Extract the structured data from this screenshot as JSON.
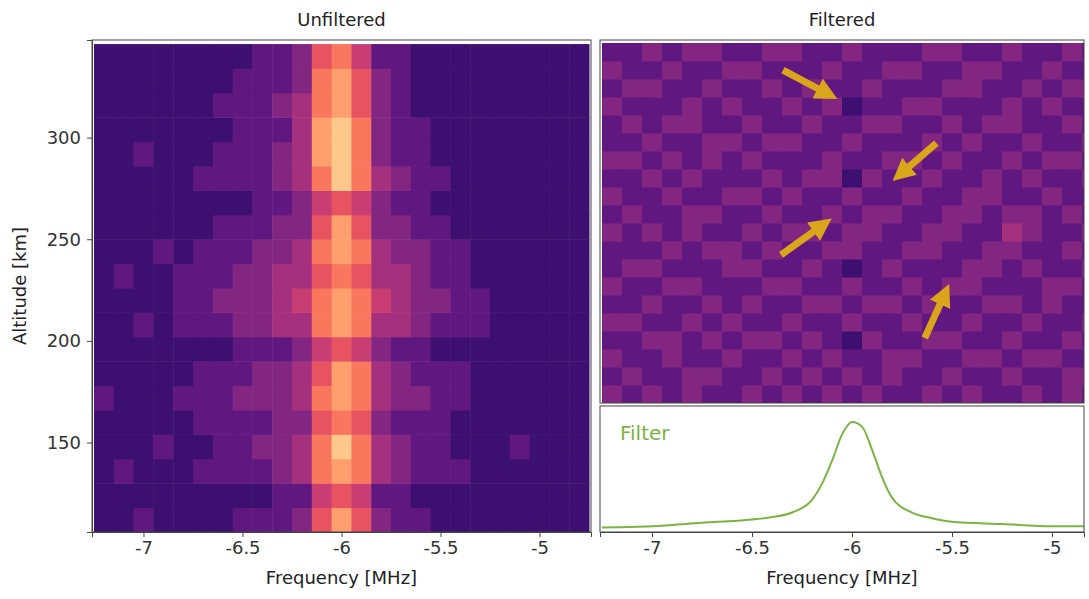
{
  "chart_data": [
    {
      "type": "heatmap",
      "title": "Unfiltered",
      "xlabel": "Frequency [MHz]",
      "ylabel": "Altitude [km]",
      "xlim": [
        -7.26,
        -4.74
      ],
      "ylim": [
        106,
        348
      ],
      "xticks": [
        -7,
        -6.5,
        -6,
        -5.5,
        -5
      ],
      "yticks": [
        150,
        200,
        250,
        300
      ],
      "zlim": [
        0,
        10
      ],
      "x": [
        -7.2,
        -7.1,
        -7.0,
        -6.9,
        -6.8,
        -6.7,
        -6.6,
        -6.5,
        -6.4,
        -6.3,
        -6.2,
        -6.1,
        -6.0,
        -5.9,
        -5.8,
        -5.7,
        -5.6,
        -5.5,
        -5.4,
        -5.3,
        -5.2,
        -5.1,
        -5.0,
        -4.9,
        -4.8
      ],
      "y": [
        112,
        124,
        136,
        148,
        160,
        172,
        184,
        196,
        208,
        220,
        232,
        244,
        256,
        268,
        280,
        292,
        304,
        316,
        328,
        340
      ],
      "values": [
        [
          1,
          1,
          2,
          1,
          1,
          1,
          1,
          2,
          2,
          2,
          3,
          6,
          8,
          6,
          3,
          2,
          2,
          1,
          1,
          1,
          1,
          1,
          1,
          1,
          1
        ],
        [
          1,
          1,
          1,
          1,
          1,
          1,
          1,
          1,
          1,
          2,
          2,
          5,
          6,
          5,
          2,
          2,
          1,
          1,
          1,
          1,
          1,
          1,
          1,
          1,
          1
        ],
        [
          1,
          2,
          1,
          1,
          1,
          2,
          2,
          2,
          2,
          3,
          4,
          7,
          8,
          7,
          4,
          3,
          2,
          2,
          2,
          1,
          1,
          1,
          1,
          1,
          1
        ],
        [
          1,
          1,
          1,
          2,
          1,
          1,
          2,
          2,
          3,
          3,
          4,
          7,
          9,
          7,
          4,
          3,
          2,
          2,
          1,
          1,
          1,
          2,
          1,
          1,
          1
        ],
        [
          1,
          1,
          1,
          1,
          1,
          2,
          2,
          2,
          2,
          3,
          3,
          6,
          7,
          6,
          3,
          2,
          2,
          2,
          1,
          1,
          1,
          1,
          1,
          1,
          1
        ],
        [
          2,
          1,
          1,
          1,
          2,
          2,
          2,
          3,
          3,
          3,
          4,
          7,
          8,
          7,
          4,
          3,
          3,
          2,
          2,
          1,
          1,
          1,
          1,
          1,
          1
        ],
        [
          1,
          1,
          1,
          1,
          1,
          2,
          2,
          2,
          3,
          3,
          4,
          6,
          8,
          7,
          4,
          3,
          2,
          2,
          2,
          1,
          1,
          1,
          1,
          1,
          1
        ],
        [
          1,
          1,
          1,
          1,
          1,
          1,
          1,
          2,
          2,
          2,
          3,
          5,
          6,
          5,
          3,
          2,
          2,
          1,
          1,
          1,
          1,
          1,
          1,
          1,
          1
        ],
        [
          1,
          1,
          2,
          1,
          2,
          2,
          2,
          3,
          3,
          4,
          4,
          7,
          8,
          7,
          4,
          4,
          3,
          2,
          2,
          2,
          1,
          1,
          1,
          1,
          1
        ],
        [
          1,
          1,
          1,
          1,
          2,
          2,
          3,
          3,
          3,
          4,
          5,
          7,
          8,
          7,
          5,
          4,
          3,
          3,
          2,
          2,
          1,
          1,
          1,
          1,
          1
        ],
        [
          1,
          2,
          1,
          1,
          2,
          2,
          2,
          3,
          3,
          4,
          4,
          6,
          7,
          6,
          4,
          4,
          3,
          2,
          2,
          1,
          1,
          1,
          1,
          1,
          1
        ],
        [
          1,
          1,
          1,
          2,
          1,
          2,
          2,
          2,
          3,
          3,
          4,
          7,
          8,
          7,
          4,
          3,
          3,
          2,
          2,
          1,
          1,
          1,
          1,
          1,
          1
        ],
        [
          1,
          1,
          1,
          1,
          1,
          1,
          2,
          2,
          2,
          3,
          3,
          6,
          8,
          6,
          3,
          3,
          2,
          2,
          1,
          1,
          1,
          1,
          1,
          1,
          1
        ],
        [
          1,
          1,
          1,
          1,
          1,
          1,
          1,
          1,
          2,
          2,
          3,
          5,
          6,
          5,
          3,
          2,
          2,
          1,
          1,
          1,
          1,
          1,
          1,
          1,
          1
        ],
        [
          1,
          1,
          1,
          1,
          1,
          2,
          2,
          2,
          2,
          3,
          4,
          7,
          9,
          7,
          4,
          3,
          2,
          2,
          1,
          1,
          1,
          1,
          1,
          1,
          1
        ],
        [
          1,
          1,
          2,
          1,
          1,
          1,
          2,
          2,
          2,
          3,
          4,
          8,
          9,
          7,
          3,
          2,
          2,
          1,
          1,
          1,
          1,
          1,
          1,
          1,
          1
        ],
        [
          1,
          1,
          1,
          1,
          1,
          1,
          1,
          2,
          2,
          2,
          4,
          8,
          9,
          7,
          3,
          2,
          2,
          1,
          1,
          1,
          1,
          1,
          1,
          1,
          1
        ],
        [
          1,
          1,
          1,
          1,
          1,
          1,
          2,
          2,
          2,
          3,
          4,
          7,
          8,
          6,
          3,
          2,
          1,
          1,
          1,
          1,
          1,
          1,
          1,
          1,
          1
        ],
        [
          1,
          1,
          1,
          1,
          1,
          1,
          1,
          2,
          2,
          2,
          3,
          7,
          8,
          6,
          3,
          2,
          1,
          1,
          1,
          1,
          1,
          1,
          1,
          1,
          1
        ],
        [
          1,
          1,
          1,
          1,
          1,
          1,
          1,
          1,
          2,
          2,
          3,
          6,
          7,
          5,
          2,
          2,
          1,
          1,
          1,
          1,
          1,
          1,
          1,
          1,
          1
        ]
      ]
    },
    {
      "type": "heatmap",
      "title": "Filtered",
      "tick_labels": false,
      "xlim": [
        -7.26,
        -4.84
      ],
      "ylim": [
        106,
        348
      ],
      "zlim": [
        0,
        10
      ],
      "x": [
        -7.2,
        -7.1,
        -7.0,
        -6.9,
        -6.8,
        -6.7,
        -6.6,
        -6.5,
        -6.4,
        -6.3,
        -6.2,
        -6.1,
        -6.0,
        -5.9,
        -5.8,
        -5.7,
        -5.6,
        -5.5,
        -5.4,
        -5.3,
        -5.2,
        -5.1,
        -5.0,
        -4.9,
        -4.8
      ],
      "y": [
        112,
        124,
        136,
        148,
        160,
        172,
        184,
        196,
        208,
        220,
        232,
        244,
        256,
        268,
        280,
        292,
        304,
        316,
        328,
        340
      ],
      "values": [
        [
          3,
          2,
          3,
          2,
          3,
          2,
          2,
          3,
          2,
          3,
          2,
          3,
          2,
          3,
          2,
          2,
          3,
          2,
          3,
          2,
          2,
          3,
          2,
          3,
          2
        ],
        [
          2,
          3,
          2,
          2,
          3,
          3,
          2,
          2,
          3,
          2,
          3,
          2,
          3,
          2,
          3,
          2,
          2,
          3,
          2,
          2,
          3,
          2,
          2,
          3,
          3
        ],
        [
          3,
          2,
          2,
          3,
          2,
          2,
          3,
          2,
          2,
          3,
          2,
          3,
          2,
          2,
          3,
          3,
          2,
          2,
          3,
          3,
          2,
          3,
          3,
          2,
          2
        ],
        [
          2,
          2,
          3,
          3,
          2,
          3,
          2,
          3,
          3,
          2,
          3,
          2,
          1,
          3,
          2,
          2,
          3,
          3,
          2,
          2,
          3,
          2,
          2,
          3,
          2
        ],
        [
          3,
          3,
          2,
          2,
          3,
          2,
          3,
          2,
          2,
          3,
          2,
          2,
          3,
          2,
          2,
          3,
          2,
          2,
          3,
          2,
          2,
          3,
          2,
          2,
          3
        ],
        [
          2,
          2,
          3,
          2,
          2,
          3,
          2,
          3,
          2,
          2,
          3,
          3,
          2,
          3,
          3,
          2,
          3,
          2,
          2,
          3,
          3,
          2,
          3,
          2,
          2
        ],
        [
          3,
          2,
          2,
          3,
          3,
          2,
          2,
          2,
          3,
          3,
          2,
          2,
          3,
          2,
          2,
          3,
          2,
          3,
          3,
          2,
          2,
          2,
          3,
          3,
          2
        ],
        [
          2,
          3,
          3,
          2,
          2,
          2,
          3,
          3,
          2,
          2,
          3,
          2,
          1,
          2,
          3,
          2,
          2,
          2,
          3,
          3,
          2,
          3,
          2,
          2,
          3
        ],
        [
          2,
          2,
          2,
          3,
          2,
          3,
          3,
          2,
          3,
          2,
          2,
          3,
          3,
          2,
          2,
          3,
          3,
          2,
          2,
          3,
          3,
          2,
          2,
          3,
          2
        ],
        [
          3,
          2,
          3,
          2,
          3,
          2,
          2,
          3,
          2,
          3,
          3,
          2,
          3,
          3,
          2,
          2,
          3,
          3,
          2,
          2,
          4,
          3,
          2,
          2,
          3
        ],
        [
          2,
          3,
          2,
          2,
          3,
          3,
          2,
          2,
          3,
          2,
          2,
          3,
          2,
          3,
          3,
          2,
          2,
          3,
          3,
          2,
          3,
          3,
          2,
          3,
          2
        ],
        [
          3,
          2,
          2,
          3,
          2,
          2,
          3,
          3,
          2,
          3,
          2,
          2,
          3,
          2,
          2,
          3,
          2,
          2,
          3,
          3,
          2,
          2,
          3,
          2,
          2
        ],
        [
          2,
          2,
          3,
          2,
          3,
          2,
          2,
          2,
          3,
          2,
          3,
          3,
          1,
          3,
          2,
          2,
          3,
          2,
          2,
          3,
          2,
          3,
          2,
          2,
          3
        ],
        [
          3,
          3,
          2,
          3,
          2,
          3,
          2,
          3,
          2,
          2,
          2,
          3,
          2,
          2,
          3,
          3,
          2,
          3,
          2,
          2,
          3,
          2,
          3,
          3,
          2
        ],
        [
          2,
          2,
          3,
          2,
          2,
          3,
          3,
          2,
          3,
          3,
          2,
          2,
          3,
          2,
          2,
          2,
          3,
          2,
          3,
          2,
          2,
          3,
          2,
          2,
          3
        ],
        [
          2,
          3,
          2,
          3,
          3,
          2,
          2,
          3,
          2,
          2,
          3,
          2,
          2,
          3,
          3,
          2,
          2,
          3,
          2,
          3,
          3,
          2,
          2,
          3,
          2
        ],
        [
          3,
          2,
          2,
          2,
          3,
          2,
          3,
          2,
          2,
          3,
          2,
          3,
          1,
          2,
          2,
          3,
          3,
          2,
          2,
          2,
          3,
          2,
          3,
          2,
          2
        ],
        [
          2,
          3,
          3,
          2,
          2,
          3,
          2,
          2,
          3,
          2,
          3,
          2,
          2,
          3,
          2,
          2,
          2,
          3,
          3,
          2,
          2,
          3,
          2,
          3,
          3
        ],
        [
          3,
          2,
          2,
          3,
          2,
          2,
          3,
          3,
          2,
          2,
          2,
          3,
          2,
          2,
          3,
          3,
          2,
          2,
          3,
          3,
          2,
          2,
          3,
          2,
          2
        ],
        [
          2,
          2,
          3,
          2,
          3,
          3,
          2,
          2,
          3,
          3,
          2,
          2,
          3,
          2,
          2,
          2,
          3,
          3,
          2,
          2,
          3,
          2,
          2,
          3,
          2
        ]
      ]
    },
    {
      "type": "line",
      "annotation": "Filter",
      "xlabel": "Frequency [MHz]",
      "tick_labels": "x",
      "color": "#7cb342",
      "xlim": [
        -7.26,
        -4.84
      ],
      "ylim": [
        0,
        1.1
      ],
      "xticks": [
        -7,
        -6.5,
        -6,
        -5.5,
        -5
      ],
      "x": [
        -7.25,
        -7.0,
        -6.75,
        -6.5,
        -6.4,
        -6.3,
        -6.2,
        -6.15,
        -6.1,
        -6.05,
        -6.0,
        -5.95,
        -5.9,
        -5.85,
        -5.8,
        -5.7,
        -5.6,
        -5.5,
        -5.25,
        -5.0,
        -4.84
      ],
      "values": [
        0.04,
        0.05,
        0.08,
        0.11,
        0.13,
        0.17,
        0.28,
        0.42,
        0.62,
        0.85,
        0.96,
        0.92,
        0.72,
        0.48,
        0.3,
        0.17,
        0.12,
        0.09,
        0.07,
        0.05,
        0.05
      ]
    }
  ]
}
